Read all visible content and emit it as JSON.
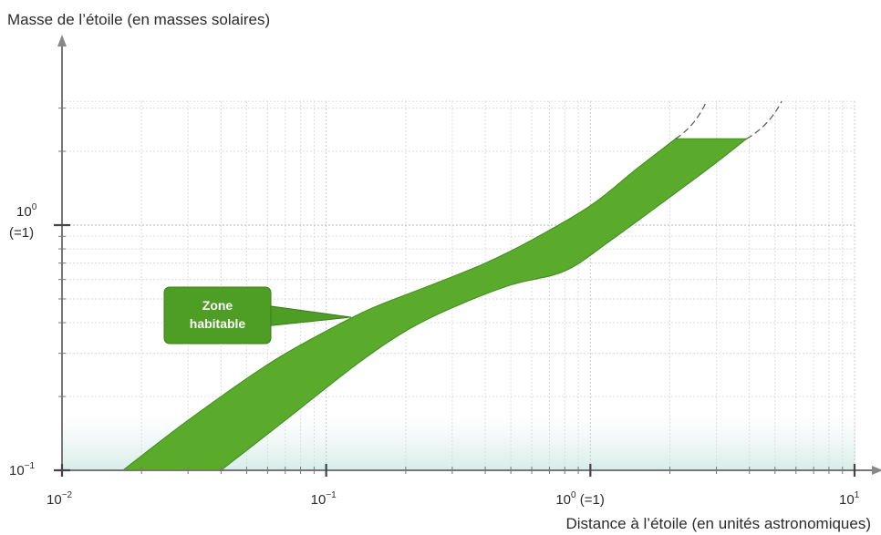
{
  "chart_data": {
    "type": "area",
    "x_scale": "log",
    "y_scale": "log",
    "xlim": [
      0.01,
      10
    ],
    "ylim": [
      0.1,
      3.2
    ],
    "ylabel": "Masse de l’étoile (en masses solaires)",
    "xlabel": "Distance à l’étoile (en unités astronomiques)",
    "x_ticks": [
      {
        "value": 0.01,
        "base": "10",
        "exp": "−2",
        "suffix": ""
      },
      {
        "value": 0.1,
        "base": "10",
        "exp": "−1",
        "suffix": ""
      },
      {
        "value": 1,
        "base": "10",
        "exp": "0",
        "suffix": " (=1)"
      },
      {
        "value": 10,
        "base": "10",
        "exp": "1",
        "suffix": ""
      }
    ],
    "y_ticks": [
      {
        "value": 0.1,
        "base": "10",
        "exp": "−1",
        "line2": ""
      },
      {
        "value": 1,
        "base": "10",
        "exp": "0",
        "line2": "(=1)"
      }
    ],
    "grid": true,
    "series": [
      {
        "name": "Zone habitable",
        "color": "#5aaa2b",
        "inner_edge": [
          {
            "x": 0.017,
            "y": 0.1
          },
          {
            "x": 0.03,
            "y": 0.16
          },
          {
            "x": 0.06,
            "y": 0.27
          },
          {
            "x": 0.1,
            "y": 0.37
          },
          {
            "x": 0.15,
            "y": 0.46
          },
          {
            "x": 0.25,
            "y": 0.57
          },
          {
            "x": 0.4,
            "y": 0.7
          },
          {
            "x": 0.6,
            "y": 0.87
          },
          {
            "x": 1.0,
            "y": 1.2
          },
          {
            "x": 1.5,
            "y": 1.7
          },
          {
            "x": 2.1,
            "y": 2.25
          }
        ],
        "outer_edge": [
          {
            "x": 0.04,
            "y": 0.1
          },
          {
            "x": 0.07,
            "y": 0.16
          },
          {
            "x": 0.13,
            "y": 0.27
          },
          {
            "x": 0.2,
            "y": 0.37
          },
          {
            "x": 0.3,
            "y": 0.46
          },
          {
            "x": 0.5,
            "y": 0.57
          },
          {
            "x": 0.8,
            "y": 0.65
          },
          {
            "x": 1.2,
            "y": 0.87
          },
          {
            "x": 2.0,
            "y": 1.3
          },
          {
            "x": 3.0,
            "y": 1.8
          },
          {
            "x": 3.9,
            "y": 2.25
          }
        ],
        "dashed_extension_inner": [
          {
            "x": 2.1,
            "y": 2.25
          },
          {
            "x": 2.75,
            "y": 3.2
          }
        ],
        "dashed_extension_outer": [
          {
            "x": 3.9,
            "y": 2.25
          },
          {
            "x": 5.3,
            "y": 3.2
          }
        ]
      }
    ],
    "annotations": [
      {
        "line1": "Zone",
        "line2": "habitable",
        "points_to": {
          "x": 0.12,
          "y": 0.4
        }
      }
    ]
  }
}
